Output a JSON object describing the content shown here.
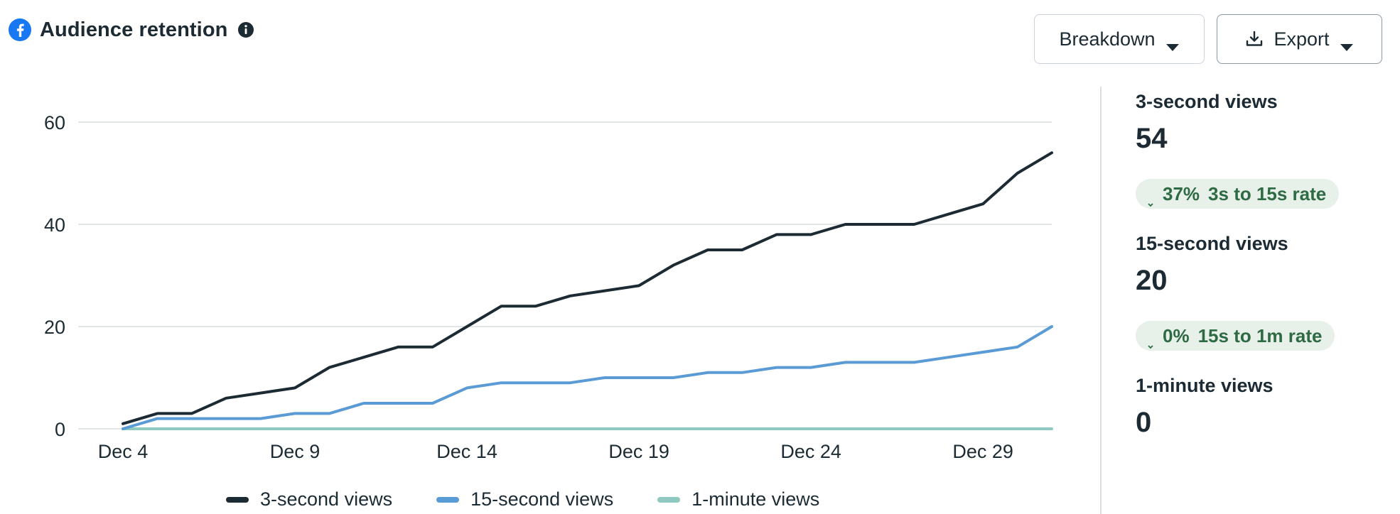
{
  "header": {
    "title": "Audience retention",
    "logo_icon": "facebook-icon",
    "info_icon": "info-icon"
  },
  "toolbar": {
    "breakdown_label": "Breakdown",
    "export_label": "Export",
    "export_icon": "download-icon"
  },
  "colors": {
    "three_sec": "#1c2b33",
    "fifteen_sec": "#5b9bd5",
    "one_min": "#8fc9c0",
    "grid": "#dadde1",
    "facebook": "#1877f2"
  },
  "chart_data": {
    "type": "line",
    "title": "Audience retention",
    "x": [
      "Dec 4",
      "Dec 5",
      "Dec 6",
      "Dec 7",
      "Dec 8",
      "Dec 9",
      "Dec 10",
      "Dec 11",
      "Dec 12",
      "Dec 13",
      "Dec 14",
      "Dec 15",
      "Dec 16",
      "Dec 17",
      "Dec 18",
      "Dec 19",
      "Dec 20",
      "Dec 21",
      "Dec 22",
      "Dec 23",
      "Dec 24",
      "Dec 25",
      "Dec 26",
      "Dec 27",
      "Dec 28",
      "Dec 29",
      "Dec 30",
      "Dec 31"
    ],
    "x_tick_labels": [
      "Dec 4",
      "Dec 9",
      "Dec 14",
      "Dec 19",
      "Dec 24",
      "Dec 29"
    ],
    "y_ticks": [
      0,
      20,
      40,
      60
    ],
    "ylim": [
      0,
      60
    ],
    "grid": true,
    "legend_position": "bottom",
    "series": [
      {
        "name": "3-second views",
        "color": "#1c2b33",
        "values": [
          1,
          3,
          3,
          6,
          7,
          8,
          12,
          14,
          16,
          16,
          20,
          24,
          24,
          26,
          27,
          28,
          32,
          35,
          35,
          38,
          38,
          40,
          40,
          40,
          42,
          44,
          50,
          54
        ]
      },
      {
        "name": "15-second views",
        "color": "#5b9bd5",
        "values": [
          0,
          2,
          2,
          2,
          2,
          3,
          3,
          5,
          5,
          5,
          8,
          9,
          9,
          9,
          10,
          10,
          10,
          11,
          11,
          12,
          12,
          13,
          13,
          13,
          14,
          15,
          16,
          20
        ]
      },
      {
        "name": "1-minute views",
        "color": "#8fc9c0",
        "values": [
          0,
          0,
          0,
          0,
          0,
          0,
          0,
          0,
          0,
          0,
          0,
          0,
          0,
          0,
          0,
          0,
          0,
          0,
          0,
          0,
          0,
          0,
          0,
          0,
          0,
          0,
          0,
          0
        ]
      }
    ]
  },
  "legend": [
    {
      "label": "3-second views",
      "color": "#1c2b33"
    },
    {
      "label": "15-second views",
      "color": "#5b9bd5"
    },
    {
      "label": "1-minute views",
      "color": "#8fc9c0"
    }
  ],
  "stats": {
    "three_sec": {
      "label": "3-second views",
      "value": "54"
    },
    "rate1": {
      "percent": "37%",
      "label": "3s to 15s rate"
    },
    "fifteen_sec": {
      "label": "15-second views",
      "value": "20"
    },
    "rate2": {
      "percent": "0%",
      "label": "15s to 1m rate"
    },
    "one_min": {
      "label": "1-minute views",
      "value": "0"
    }
  }
}
